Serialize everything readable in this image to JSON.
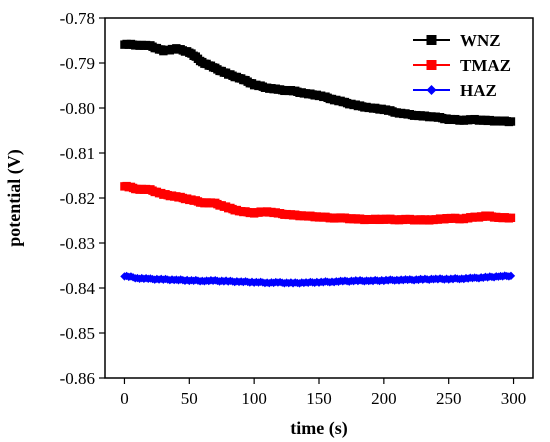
{
  "chart_data": {
    "type": "line",
    "title": "",
    "xlabel": "time (s)",
    "ylabel": "potential (V)",
    "xlim": [
      -15,
      315
    ],
    "ylim": [
      -0.86,
      -0.78
    ],
    "xticks": [
      0,
      50,
      100,
      150,
      200,
      250,
      300
    ],
    "yticks": [
      -0.86,
      -0.85,
      -0.84,
      -0.83,
      -0.82,
      -0.81,
      -0.8,
      -0.79,
      -0.78
    ],
    "xtick_labels": [
      "0",
      "50",
      "100",
      "150",
      "200",
      "250",
      "300"
    ],
    "ytick_labels": [
      "-0.86",
      "-0.85",
      "-0.84",
      "-0.83",
      "-0.82",
      "-0.81",
      "-0.80",
      "-0.79",
      "-0.78"
    ],
    "legend_position": "top-right",
    "series": [
      {
        "name": "WNZ",
        "color": "#000000",
        "marker": "square",
        "x": [
          0,
          10,
          20,
          30,
          40,
          50,
          60,
          70,
          80,
          90,
          100,
          110,
          120,
          130,
          140,
          150,
          160,
          170,
          180,
          190,
          200,
          210,
          220,
          230,
          240,
          250,
          260,
          270,
          280,
          290,
          298
        ],
        "y": [
          -0.7858,
          -0.786,
          -0.7862,
          -0.7873,
          -0.7868,
          -0.7876,
          -0.7898,
          -0.7912,
          -0.7925,
          -0.7935,
          -0.7948,
          -0.7955,
          -0.796,
          -0.7962,
          -0.7968,
          -0.7972,
          -0.798,
          -0.7988,
          -0.7995,
          -0.8,
          -0.8003,
          -0.801,
          -0.8015,
          -0.8018,
          -0.802,
          -0.8025,
          -0.8027,
          -0.8026,
          -0.8028,
          -0.8029,
          -0.803
        ]
      },
      {
        "name": "TMAZ",
        "color": "#ff0000",
        "marker": "square",
        "x": [
          0,
          10,
          20,
          30,
          40,
          50,
          60,
          70,
          80,
          90,
          100,
          110,
          120,
          130,
          140,
          150,
          160,
          170,
          180,
          190,
          200,
          210,
          220,
          230,
          240,
          250,
          260,
          270,
          280,
          290,
          298
        ],
        "y": [
          -0.8173,
          -0.818,
          -0.8182,
          -0.8192,
          -0.8197,
          -0.8203,
          -0.821,
          -0.8212,
          -0.8222,
          -0.823,
          -0.8233,
          -0.823,
          -0.8235,
          -0.8238,
          -0.824,
          -0.8242,
          -0.8244,
          -0.8245,
          -0.8247,
          -0.8248,
          -0.8247,
          -0.8248,
          -0.8248,
          -0.8249,
          -0.8248,
          -0.8245,
          -0.8246,
          -0.8243,
          -0.824,
          -0.8244,
          -0.8244
        ]
      },
      {
        "name": "HAZ",
        "color": "#0000ff",
        "marker": "diamond",
        "x": [
          0,
          10,
          20,
          30,
          40,
          50,
          60,
          70,
          80,
          90,
          100,
          110,
          120,
          130,
          140,
          150,
          160,
          170,
          180,
          190,
          200,
          210,
          220,
          230,
          240,
          250,
          260,
          270,
          280,
          290,
          298
        ],
        "y": [
          -0.8373,
          -0.8378,
          -0.838,
          -0.8381,
          -0.8382,
          -0.8383,
          -0.8384,
          -0.8384,
          -0.8385,
          -0.8386,
          -0.8387,
          -0.8388,
          -0.8388,
          -0.8389,
          -0.8388,
          -0.8387,
          -0.8386,
          -0.8385,
          -0.8384,
          -0.8384,
          -0.8383,
          -0.8382,
          -0.8382,
          -0.8381,
          -0.838,
          -0.838,
          -0.8379,
          -0.8378,
          -0.8376,
          -0.8374,
          -0.8373
        ]
      }
    ]
  }
}
